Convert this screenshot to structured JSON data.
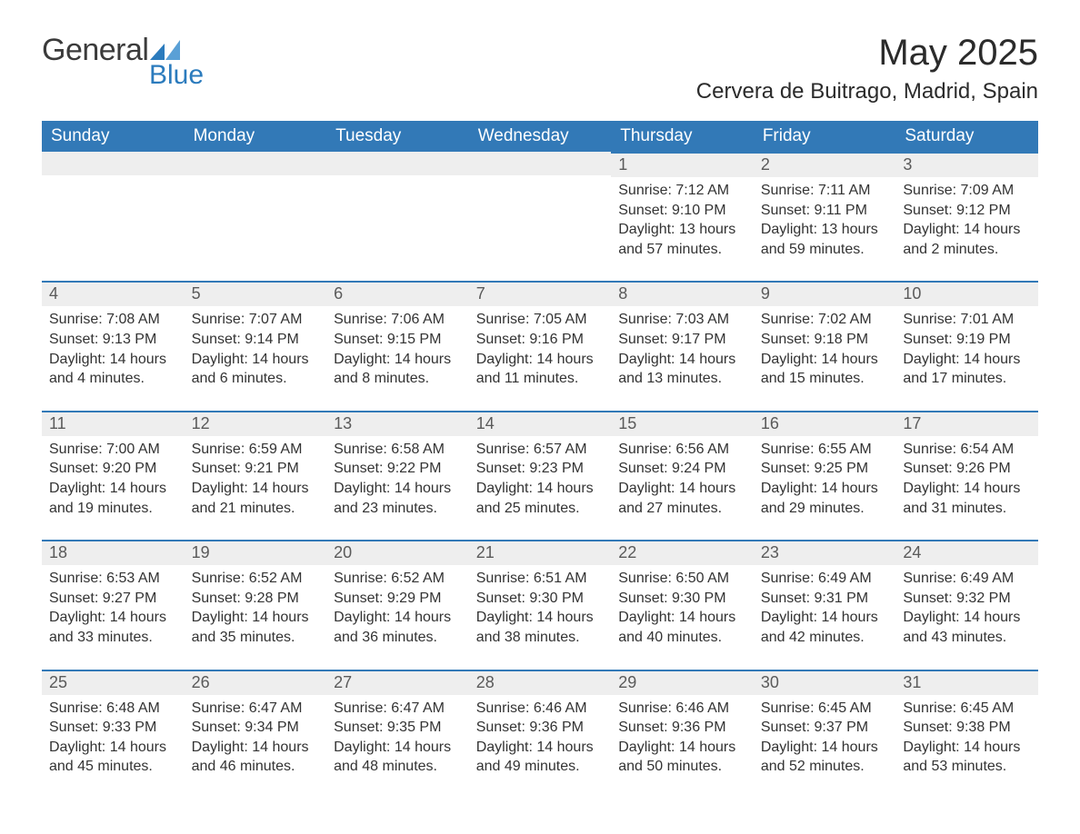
{
  "logo": {
    "general": "General",
    "blue": "Blue",
    "accent_color": "#2b7bbd"
  },
  "title": "May 2025",
  "location": "Cervera de Buitrago, Madrid, Spain",
  "colors": {
    "header_bg": "#3279b7",
    "header_text": "#ffffff",
    "daynum_bg": "#eeeeee",
    "daynum_border": "#3279b7",
    "body_text": "#333333",
    "separator": "#cdd8e2",
    "page_bg": "#ffffff"
  },
  "day_headers": [
    "Sunday",
    "Monday",
    "Tuesday",
    "Wednesday",
    "Thursday",
    "Friday",
    "Saturday"
  ],
  "weeks": [
    [
      null,
      null,
      null,
      null,
      {
        "n": "1",
        "sunrise": "7:12 AM",
        "sunset": "9:10 PM",
        "daylight": "13 hours and 57 minutes."
      },
      {
        "n": "2",
        "sunrise": "7:11 AM",
        "sunset": "9:11 PM",
        "daylight": "13 hours and 59 minutes."
      },
      {
        "n": "3",
        "sunrise": "7:09 AM",
        "sunset": "9:12 PM",
        "daylight": "14 hours and 2 minutes."
      }
    ],
    [
      {
        "n": "4",
        "sunrise": "7:08 AM",
        "sunset": "9:13 PM",
        "daylight": "14 hours and 4 minutes."
      },
      {
        "n": "5",
        "sunrise": "7:07 AM",
        "sunset": "9:14 PM",
        "daylight": "14 hours and 6 minutes."
      },
      {
        "n": "6",
        "sunrise": "7:06 AM",
        "sunset": "9:15 PM",
        "daylight": "14 hours and 8 minutes."
      },
      {
        "n": "7",
        "sunrise": "7:05 AM",
        "sunset": "9:16 PM",
        "daylight": "14 hours and 11 minutes."
      },
      {
        "n": "8",
        "sunrise": "7:03 AM",
        "sunset": "9:17 PM",
        "daylight": "14 hours and 13 minutes."
      },
      {
        "n": "9",
        "sunrise": "7:02 AM",
        "sunset": "9:18 PM",
        "daylight": "14 hours and 15 minutes."
      },
      {
        "n": "10",
        "sunrise": "7:01 AM",
        "sunset": "9:19 PM",
        "daylight": "14 hours and 17 minutes."
      }
    ],
    [
      {
        "n": "11",
        "sunrise": "7:00 AM",
        "sunset": "9:20 PM",
        "daylight": "14 hours and 19 minutes."
      },
      {
        "n": "12",
        "sunrise": "6:59 AM",
        "sunset": "9:21 PM",
        "daylight": "14 hours and 21 minutes."
      },
      {
        "n": "13",
        "sunrise": "6:58 AM",
        "sunset": "9:22 PM",
        "daylight": "14 hours and 23 minutes."
      },
      {
        "n": "14",
        "sunrise": "6:57 AM",
        "sunset": "9:23 PM",
        "daylight": "14 hours and 25 minutes."
      },
      {
        "n": "15",
        "sunrise": "6:56 AM",
        "sunset": "9:24 PM",
        "daylight": "14 hours and 27 minutes."
      },
      {
        "n": "16",
        "sunrise": "6:55 AM",
        "sunset": "9:25 PM",
        "daylight": "14 hours and 29 minutes."
      },
      {
        "n": "17",
        "sunrise": "6:54 AM",
        "sunset": "9:26 PM",
        "daylight": "14 hours and 31 minutes."
      }
    ],
    [
      {
        "n": "18",
        "sunrise": "6:53 AM",
        "sunset": "9:27 PM",
        "daylight": "14 hours and 33 minutes."
      },
      {
        "n": "19",
        "sunrise": "6:52 AM",
        "sunset": "9:28 PM",
        "daylight": "14 hours and 35 minutes."
      },
      {
        "n": "20",
        "sunrise": "6:52 AM",
        "sunset": "9:29 PM",
        "daylight": "14 hours and 36 minutes."
      },
      {
        "n": "21",
        "sunrise": "6:51 AM",
        "sunset": "9:30 PM",
        "daylight": "14 hours and 38 minutes."
      },
      {
        "n": "22",
        "sunrise": "6:50 AM",
        "sunset": "9:30 PM",
        "daylight": "14 hours and 40 minutes."
      },
      {
        "n": "23",
        "sunrise": "6:49 AM",
        "sunset": "9:31 PM",
        "daylight": "14 hours and 42 minutes."
      },
      {
        "n": "24",
        "sunrise": "6:49 AM",
        "sunset": "9:32 PM",
        "daylight": "14 hours and 43 minutes."
      }
    ],
    [
      {
        "n": "25",
        "sunrise": "6:48 AM",
        "sunset": "9:33 PM",
        "daylight": "14 hours and 45 minutes."
      },
      {
        "n": "26",
        "sunrise": "6:47 AM",
        "sunset": "9:34 PM",
        "daylight": "14 hours and 46 minutes."
      },
      {
        "n": "27",
        "sunrise": "6:47 AM",
        "sunset": "9:35 PM",
        "daylight": "14 hours and 48 minutes."
      },
      {
        "n": "28",
        "sunrise": "6:46 AM",
        "sunset": "9:36 PM",
        "daylight": "14 hours and 49 minutes."
      },
      {
        "n": "29",
        "sunrise": "6:46 AM",
        "sunset": "9:36 PM",
        "daylight": "14 hours and 50 minutes."
      },
      {
        "n": "30",
        "sunrise": "6:45 AM",
        "sunset": "9:37 PM",
        "daylight": "14 hours and 52 minutes."
      },
      {
        "n": "31",
        "sunrise": "6:45 AM",
        "sunset": "9:38 PM",
        "daylight": "14 hours and 53 minutes."
      }
    ]
  ],
  "labels": {
    "sunrise": "Sunrise: ",
    "sunset": "Sunset: ",
    "daylight": "Daylight: "
  }
}
